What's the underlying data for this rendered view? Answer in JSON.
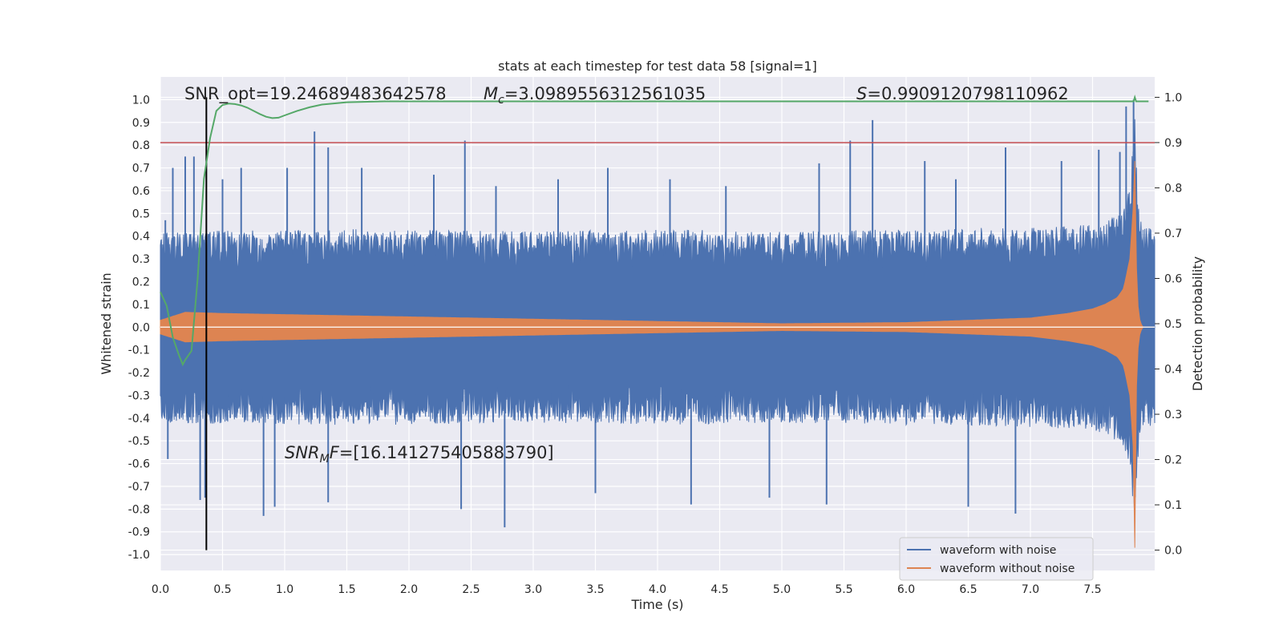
{
  "chart_data": {
    "type": "line",
    "title": "stats at each timestep for test data 58 [signal=1]",
    "xlabel": "Time (s)",
    "ylabel": "Whitened strain",
    "y2label": "Detection probability",
    "xlim": [
      0.0,
      8.0
    ],
    "ylim": [
      -1.07,
      1.1
    ],
    "y2lim": [
      -0.045,
      1.045
    ],
    "xticks": [
      "0.0",
      "0.5",
      "1.0",
      "1.5",
      "2.0",
      "2.5",
      "3.0",
      "3.5",
      "4.0",
      "4.5",
      "5.0",
      "5.5",
      "6.0",
      "6.5",
      "7.0",
      "7.5"
    ],
    "yticks": [
      "1.0",
      "0.9",
      "0.8",
      "0.7",
      "0.6",
      "0.5",
      "0.4",
      "0.3",
      "0.2",
      "0.1",
      "0.0",
      "-0.1",
      "-0.2",
      "-0.3",
      "-0.4",
      "-0.5",
      "-0.6",
      "-0.7",
      "-0.8",
      "-0.9",
      "-1.0"
    ],
    "y2ticks": [
      "1.0",
      "0.9",
      "0.8",
      "0.7",
      "0.6",
      "0.5",
      "0.4",
      "0.3",
      "0.2",
      "0.1",
      "0.0"
    ],
    "grid": true,
    "legend_position": "bottom-right",
    "annotations": {
      "snr_opt": "SNR_opt=19.24689483642578",
      "mc": "=3.0989556312561035",
      "s_value": "=0.9909120798110962",
      "snr_mf": "=[16.141275405883790]"
    },
    "threshold_y2": 0.9,
    "marker_x": 0.37,
    "series": [
      {
        "name": "waveform with noise",
        "color": "#4c72b0",
        "envelope": {
          "t": [
            0.0,
            1.0,
            2.0,
            3.0,
            4.0,
            5.0,
            6.0,
            7.0,
            7.5,
            7.7,
            7.8,
            7.84,
            7.86,
            7.9,
            8.0
          ],
          "upper": [
            0.42,
            0.43,
            0.43,
            0.42,
            0.43,
            0.42,
            0.43,
            0.44,
            0.45,
            0.5,
            0.6,
            0.97,
            0.6,
            0.45,
            0.43
          ],
          "lower": [
            -0.42,
            -0.43,
            -0.43,
            -0.42,
            -0.43,
            -0.42,
            -0.43,
            -0.44,
            -0.45,
            -0.5,
            -0.6,
            -0.86,
            -0.6,
            -0.45,
            -0.43
          ]
        },
        "spikes": [
          {
            "x": 0.04,
            "y": 0.47
          },
          {
            "x": 0.06,
            "y": -0.58
          },
          {
            "x": 0.1,
            "y": 0.7
          },
          {
            "x": 0.2,
            "y": 0.75
          },
          {
            "x": 0.27,
            "y": 0.75
          },
          {
            "x": 0.32,
            "y": -0.76
          },
          {
            "x": 0.36,
            "y": -0.75
          },
          {
            "x": 0.5,
            "y": 0.65
          },
          {
            "x": 0.65,
            "y": 0.7
          },
          {
            "x": 0.83,
            "y": -0.83
          },
          {
            "x": 0.92,
            "y": -0.79
          },
          {
            "x": 1.02,
            "y": 0.7
          },
          {
            "x": 1.24,
            "y": 0.86
          },
          {
            "x": 1.35,
            "y": 0.79
          },
          {
            "x": 1.35,
            "y": -0.77
          },
          {
            "x": 1.62,
            "y": 0.7
          },
          {
            "x": 2.2,
            "y": 0.67
          },
          {
            "x": 2.42,
            "y": -0.8
          },
          {
            "x": 2.45,
            "y": 0.82
          },
          {
            "x": 2.7,
            "y": 0.62
          },
          {
            "x": 2.77,
            "y": -0.88
          },
          {
            "x": 3.2,
            "y": 0.65
          },
          {
            "x": 3.5,
            "y": -0.73
          },
          {
            "x": 3.6,
            "y": 0.7
          },
          {
            "x": 4.1,
            "y": 0.65
          },
          {
            "x": 4.27,
            "y": -0.78
          },
          {
            "x": 4.55,
            "y": 0.62
          },
          {
            "x": 4.9,
            "y": -0.75
          },
          {
            "x": 5.3,
            "y": 0.72
          },
          {
            "x": 5.36,
            "y": -0.78
          },
          {
            "x": 5.55,
            "y": 0.82
          },
          {
            "x": 5.73,
            "y": 0.91
          },
          {
            "x": 6.15,
            "y": 0.73
          },
          {
            "x": 6.4,
            "y": 0.65
          },
          {
            "x": 6.5,
            "y": -0.79
          },
          {
            "x": 6.8,
            "y": 0.79
          },
          {
            "x": 6.88,
            "y": -0.82
          },
          {
            "x": 7.25,
            "y": 0.73
          },
          {
            "x": 7.55,
            "y": 0.78
          },
          {
            "x": 7.72,
            "y": 0.77
          },
          {
            "x": 7.77,
            "y": 0.97
          },
          {
            "x": 7.83,
            "y": 1.0
          }
        ]
      },
      {
        "name": "waveform without noise",
        "color": "#dd8452",
        "envelope": {
          "t": [
            0.0,
            0.2,
            0.5,
            1.0,
            2.0,
            3.0,
            4.0,
            5.0,
            6.0,
            6.5,
            7.0,
            7.3,
            7.5,
            7.6,
            7.7,
            7.75,
            7.8,
            7.83,
            7.84,
            7.85,
            7.87,
            7.9,
            8.0
          ],
          "upper": [
            0.03,
            0.065,
            0.06,
            0.055,
            0.045,
            0.035,
            0.025,
            0.015,
            0.02,
            0.03,
            0.04,
            0.06,
            0.08,
            0.1,
            0.13,
            0.17,
            0.3,
            0.55,
            0.73,
            0.3,
            0.05,
            0.0,
            0.0
          ],
          "lower": [
            -0.03,
            -0.065,
            -0.06,
            -0.055,
            -0.045,
            -0.035,
            -0.025,
            -0.015,
            -0.02,
            -0.03,
            -0.04,
            -0.06,
            -0.08,
            -0.1,
            -0.13,
            -0.17,
            -0.3,
            -0.55,
            -0.97,
            -0.3,
            -0.05,
            0.0,
            0.0
          ]
        }
      },
      {
        "name": "",
        "color": "#55a868",
        "axis": "right",
        "x": [
          0.0,
          0.05,
          0.1,
          0.15,
          0.18,
          0.2,
          0.25,
          0.3,
          0.35,
          0.4,
          0.45,
          0.5,
          0.55,
          0.6,
          0.65,
          0.7,
          0.75,
          0.8,
          0.85,
          0.9,
          0.95,
          1.0,
          1.1,
          1.2,
          1.3,
          1.5,
          1.8,
          2.0,
          3.0,
          4.0,
          5.0,
          6.0,
          7.0,
          7.5,
          7.83,
          7.84,
          7.85,
          7.95
        ],
        "y": [
          0.57,
          0.54,
          0.47,
          0.43,
          0.41,
          0.42,
          0.44,
          0.6,
          0.82,
          0.91,
          0.97,
          0.983,
          0.986,
          0.985,
          0.982,
          0.977,
          0.97,
          0.963,
          0.957,
          0.954,
          0.955,
          0.96,
          0.97,
          0.978,
          0.984,
          0.989,
          0.991,
          0.991,
          0.991,
          0.991,
          0.991,
          0.991,
          0.991,
          0.991,
          0.991,
          1.0,
          0.991,
          0.991
        ]
      }
    ]
  },
  "legend": {
    "items": [
      {
        "label": "waveform with noise",
        "color": "#4c72b0"
      },
      {
        "label": "waveform without noise",
        "color": "#dd8452"
      }
    ]
  }
}
